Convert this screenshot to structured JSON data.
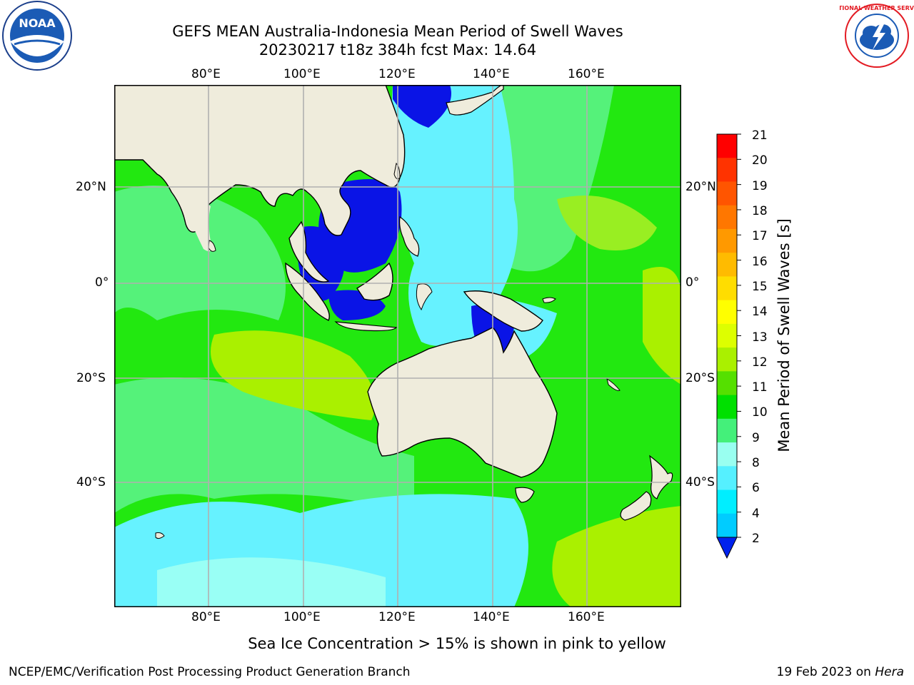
{
  "header": {
    "title_line1": "GEFS MEAN Australia-Indonesia Mean Period of Swell Waves",
    "title_line2": "20230217 t18z 384h fcst   Max: 14.64"
  },
  "logos": {
    "left": {
      "icon": "noaa-logo-icon",
      "text": "NOAA"
    },
    "right": {
      "icon": "nws-logo-icon",
      "text": "NATIONAL WEATHER SERVICE"
    }
  },
  "map": {
    "lon_labels": [
      "80°E",
      "100°E",
      "120°E",
      "140°E",
      "160°E"
    ],
    "lat_labels": [
      "20°N",
      "0°",
      "20°S",
      "40°S"
    ],
    "colors": {
      "land": "#efecdc",
      "grid": "#b0b0b0",
      "deep_blue": "#0a14e6",
      "cyan": "#66f2ff",
      "light_cyan": "#99fff5",
      "green": "#00e000",
      "light_green": "#44f060",
      "yellow_green": "#aaee00"
    }
  },
  "colorbar": {
    "label": "Mean Period of Swell Waves [s]",
    "ticks": [
      "21",
      "20",
      "19",
      "18",
      "17",
      "16",
      "15",
      "14",
      "13",
      "12",
      "11",
      "10",
      "9",
      "8",
      "6",
      "4",
      "2"
    ],
    "colors": [
      "#ff0000",
      "#ff3300",
      "#ff5500",
      "#ff7700",
      "#ff9900",
      "#ffbb00",
      "#ffdd00",
      "#ffff00",
      "#ddff00",
      "#aaf000",
      "#55e000",
      "#00e000",
      "#44f07a",
      "#99fff0",
      "#55f0ff",
      "#00eeff",
      "#00ccff",
      "#0077ff"
    ]
  },
  "note": "Sea Ice Concentration > 15% is shown in pink to yellow",
  "footer": {
    "left": "NCEP/EMC/Verification Post Processing Product Generation Branch",
    "right_date": "19 Feb 2023 on ",
    "right_host": "Hera"
  }
}
